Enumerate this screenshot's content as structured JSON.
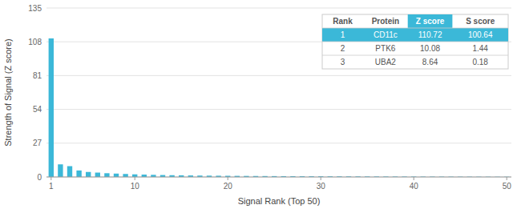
{
  "chart_data": {
    "type": "bar",
    "xlabel": "Signal Rank (Top 50)",
    "ylabel": "Strength of Signal (Z score)",
    "x": [
      1,
      2,
      3,
      4,
      5,
      6,
      7,
      8,
      9,
      10,
      11,
      12,
      13,
      14,
      15,
      16,
      17,
      18,
      19,
      20,
      21,
      22,
      23,
      24,
      25,
      26,
      27,
      28,
      29,
      30,
      31,
      32,
      33,
      34,
      35,
      36,
      37,
      38,
      39,
      40,
      41,
      42,
      43,
      44,
      45,
      46,
      47,
      48,
      49,
      50
    ],
    "values": [
      110.72,
      10.08,
      8.64,
      5.2,
      4.0,
      3.5,
      3.0,
      2.7,
      2.4,
      2.1,
      1.9,
      1.7,
      1.55,
      1.42,
      1.32,
      1.22,
      1.13,
      1.06,
      1.0,
      0.94,
      0.89,
      0.84,
      0.79,
      0.75,
      0.71,
      0.67,
      0.64,
      0.61,
      0.58,
      0.55,
      0.52,
      0.5,
      0.47,
      0.45,
      0.43,
      0.41,
      0.39,
      0.37,
      0.35,
      0.33,
      0.31,
      0.3,
      0.28,
      0.27,
      0.25,
      0.24,
      0.22,
      0.21,
      0.19,
      0.18
    ],
    "color": "#3bb8d8",
    "xlim": [
      0.5,
      50.5
    ],
    "xticks": [
      1,
      10,
      20,
      30,
      40,
      50
    ],
    "ylim": [
      0,
      135
    ],
    "yticks": [
      0,
      27,
      54,
      81,
      108,
      135
    ],
    "grid": true,
    "table": {
      "headers": [
        "Rank",
        "Protein",
        "Z score",
        "S score"
      ],
      "rows": [
        [
          "1",
          "CD11c",
          "110.72",
          "100.64"
        ],
        [
          "2",
          "PTK6",
          "10.08",
          "1.44"
        ],
        [
          "3",
          "UBA2",
          "8.64",
          "0.18"
        ]
      ]
    }
  }
}
